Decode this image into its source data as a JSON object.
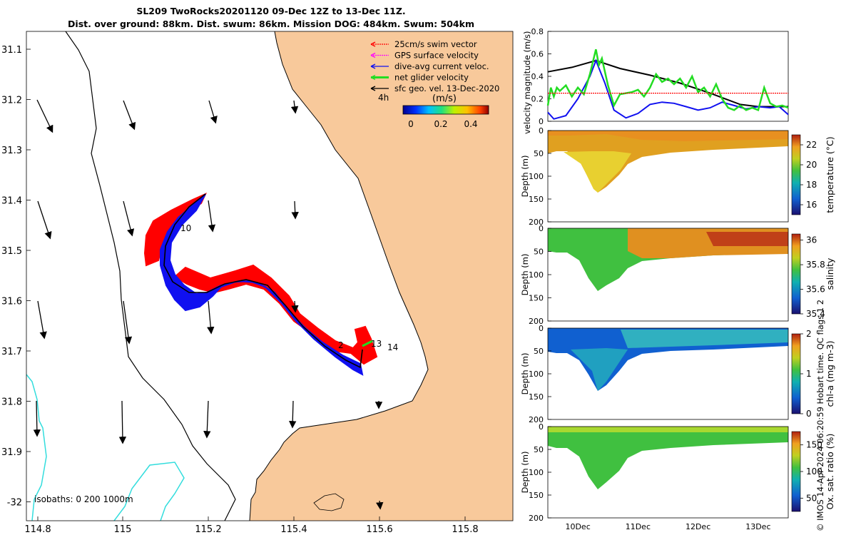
{
  "title_line1": "SL209 TwoRocks20201120 09-Dec 12Z to 13-Dec 11Z.",
  "title_line2": "Dist. over ground: 88km. Dist. swum: 86km. Mission DOG: 484km. Swum: 504km",
  "copyright": "© IMOS 14-Apr-2024 06:20:59 Hobart time. QC flags 1  2",
  "colors": {
    "land": "#f8c99b",
    "track_red": "#ff0000",
    "track_blue": "#1010f0",
    "net": "#00e000",
    "iso": "#33dddd"
  },
  "map": {
    "x_ticks": [
      "114.8",
      "115",
      "115.2",
      "115.4",
      "115.6",
      "115.8"
    ],
    "y_ticks": [
      "31.1",
      "31.2",
      "31.3",
      "31.4",
      "31.5",
      "31.6",
      "31.7",
      "31.8",
      "31.9",
      "-32"
    ],
    "legend": [
      "25cm/s swim vector",
      "GPS surface velocity",
      "dive-avg current veloc.",
      "net glider velocity",
      "sfc geo. vel. 13-Dec-2020"
    ],
    "scale_label": "4h",
    "colorbar_unit": "(m/s)",
    "colorbar_ticks": [
      "0",
      "0.2",
      "0.4"
    ],
    "day_labels": [
      "10",
      "13",
      "14",
      "2"
    ],
    "isobaths_label": "isobaths: 0   200  1000m"
  },
  "chart_data": [
    {
      "type": "line",
      "title": "",
      "ylabel": "velocity magnitude (m/s)",
      "xlim": [
        9.5,
        13.5
      ],
      "ylim": [
        0,
        0.8
      ],
      "yticks": [
        "0",
        "0.2",
        "0.4",
        "0.6",
        "0.8"
      ],
      "series": [
        {
          "name": "sfc geo. vel.",
          "color": "#000000",
          "x": [
            9.5,
            9.9,
            10.3,
            10.7,
            11.2,
            11.7,
            12.2,
            12.7,
            13.0,
            13.3,
            13.5
          ],
          "values": [
            0.44,
            0.48,
            0.54,
            0.47,
            0.41,
            0.34,
            0.25,
            0.15,
            0.13,
            0.13,
            0.13
          ]
        },
        {
          "name": "dive-avg current",
          "color": "#1010f0",
          "x": [
            9.5,
            9.6,
            9.8,
            10.0,
            10.2,
            10.3,
            10.45,
            10.6,
            10.8,
            11.0,
            11.2,
            11.4,
            11.6,
            11.8,
            12.0,
            12.2,
            12.4,
            12.6,
            12.8,
            13.0,
            13.2,
            13.35,
            13.5
          ],
          "values": [
            0.08,
            0.02,
            0.05,
            0.2,
            0.4,
            0.54,
            0.34,
            0.1,
            0.03,
            0.07,
            0.15,
            0.17,
            0.16,
            0.13,
            0.1,
            0.12,
            0.17,
            0.14,
            0.11,
            0.13,
            0.12,
            0.13,
            0.06
          ]
        },
        {
          "name": "net glider",
          "color": "#22dd22",
          "x": [
            9.5,
            9.55,
            9.6,
            9.65,
            9.7,
            9.8,
            9.9,
            10.0,
            10.1,
            10.2,
            10.3,
            10.35,
            10.4,
            10.5,
            10.6,
            10.7,
            10.8,
            10.9,
            11.0,
            11.1,
            11.2,
            11.3,
            11.4,
            11.5,
            11.6,
            11.7,
            11.8,
            11.9,
            12.0,
            12.1,
            12.2,
            12.3,
            12.4,
            12.5,
            12.6,
            12.7,
            12.8,
            12.9,
            13.0,
            13.1,
            13.2,
            13.3,
            13.4,
            13.5
          ],
          "values": [
            0.14,
            0.3,
            0.22,
            0.3,
            0.27,
            0.32,
            0.22,
            0.3,
            0.24,
            0.42,
            0.64,
            0.5,
            0.56,
            0.32,
            0.14,
            0.24,
            0.25,
            0.26,
            0.28,
            0.22,
            0.3,
            0.42,
            0.35,
            0.38,
            0.33,
            0.38,
            0.3,
            0.4,
            0.26,
            0.3,
            0.22,
            0.33,
            0.2,
            0.12,
            0.1,
            0.14,
            0.1,
            0.12,
            0.1,
            0.3,
            0.16,
            0.13,
            0.14,
            0.12
          ]
        },
        {
          "name": "25cm/s swim",
          "color": "#ff0000",
          "x": [
            9.5,
            13.5
          ],
          "values": [
            0.25,
            0.25
          ]
        }
      ]
    },
    {
      "type": "heatmap",
      "variable": "temperature",
      "colorbar_label": "temperature (°C)",
      "clim": [
        15,
        23
      ],
      "cticks": [
        "16",
        "18",
        "20",
        "22"
      ],
      "ylabel": "Depth (m)",
      "yticks": [
        "0",
        "50",
        "100",
        "150",
        "200"
      ]
    },
    {
      "type": "heatmap",
      "variable": "salinity",
      "colorbar_label": "salinity",
      "clim": [
        35.4,
        36.05
      ],
      "cticks": [
        "35.4",
        "35.6",
        "35.8",
        "36"
      ],
      "ylabel": "Depth (m)",
      "yticks": [
        "0",
        "50",
        "100",
        "150",
        "200"
      ]
    },
    {
      "type": "heatmap",
      "variable": "chl-a",
      "colorbar_label": "chl-a (mg m-3)",
      "clim": [
        0,
        2
      ],
      "cticks": [
        "0",
        "1",
        "2"
      ],
      "ylabel": "Depth (m)",
      "yticks": [
        "0",
        "50",
        "100",
        "150",
        "200"
      ]
    },
    {
      "type": "heatmap",
      "variable": "oxygen",
      "colorbar_label": "Ox. sat. ratio (%)",
      "clim": [
        25,
        175
      ],
      "cticks": [
        "50",
        "100",
        "150"
      ],
      "ylabel": "Depth (m)",
      "yticks": [
        "0",
        "50",
        "100",
        "150",
        "200"
      ],
      "xticks": [
        "10Dec",
        "11Dec",
        "12Dec",
        "13Dec"
      ]
    }
  ]
}
